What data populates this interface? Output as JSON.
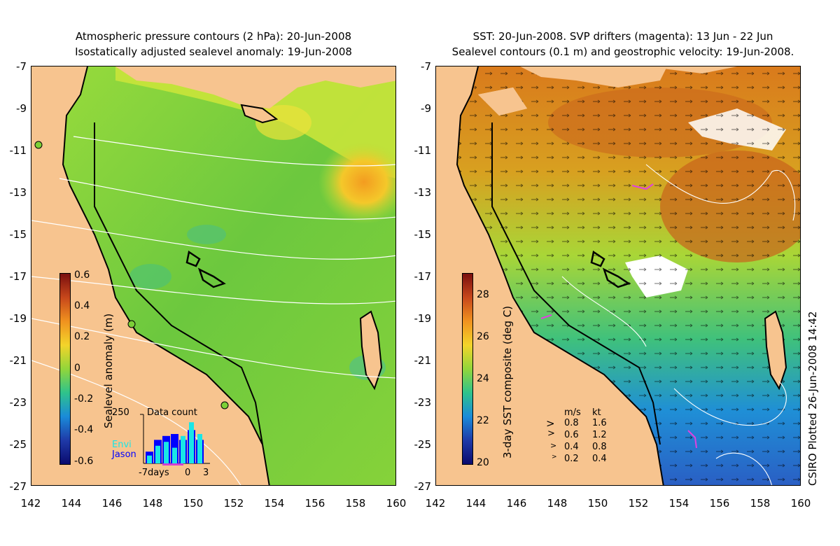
{
  "left_panel": {
    "title_line1": "Atmospheric pressure contours (2 hPa): 20-Jun-2008",
    "title_line2": "Isostatically adjusted sealevel anomaly: 19-Jun-2008",
    "colorbar": {
      "label": "Sealevel anomaly (m)",
      "ticks": [
        "0.6",
        "0.4",
        "0.2",
        "0",
        "-0.2",
        "-0.4",
        "-0.6"
      ]
    },
    "inset": {
      "title": "Data count",
      "y_max": "250",
      "series": [
        "Envi",
        "Jason"
      ],
      "series_colors": [
        "#19e6e6",
        "#0000ff"
      ],
      "x_ticks": [
        "-7days",
        "0",
        "3"
      ],
      "jason_counts": [
        60,
        120,
        140,
        150,
        120,
        170,
        120
      ],
      "envi_counts": [
        40,
        90,
        110,
        80,
        140,
        210,
        150
      ]
    }
  },
  "right_panel": {
    "title_line1": "SST: 20-Jun-2008. SVP drifters (magenta): 13 Jun - 22 Jun",
    "title_line2": "Sealevel contours (0.1 m) and geostrophic velocity: 19-Jun-2008.",
    "colorbar": {
      "label": "3-day SST composite (deg C)",
      "ticks": [
        "28",
        "26",
        "24",
        "22",
        "20"
      ]
    },
    "velocity_legend": {
      "header_ms": "m/s",
      "header_kt": "kt",
      "rows": [
        {
          "ms": "0.8",
          "kt": "1.6"
        },
        {
          "ms": "0.6",
          "kt": "1.2"
        },
        {
          "ms": "0.4",
          "kt": "0.8"
        },
        {
          "ms": "0.2",
          "kt": "0.4"
        }
      ]
    },
    "credit": "CSIRO Plotted 26-Jun-2008 14:42"
  },
  "axes": {
    "lat_ticks": [
      "-7",
      "-9",
      "-11",
      "-13",
      "-15",
      "-17",
      "-19",
      "-21",
      "-23",
      "-25",
      "-27"
    ],
    "lon_ticks": [
      "142",
      "144",
      "146",
      "148",
      "150",
      "152",
      "154",
      "156",
      "158",
      "160"
    ]
  },
  "colors": {
    "land": "#f7c48f",
    "ocean_mid": "#7cd037",
    "sst_warm": "#d97a1c",
    "sst_cool": "#1f8fd6"
  }
}
